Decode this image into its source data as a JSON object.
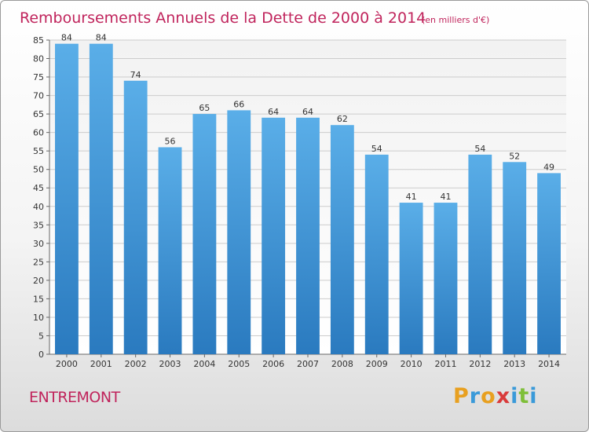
{
  "header": {
    "title": "Remboursements Annuels de la Dette de 2000 à 2014",
    "unit": "(en milliers d'€)"
  },
  "footer": {
    "commune": "ENTREMONT",
    "logo_text": "Proxiti",
    "logo_colors": [
      "#e8a020",
      "#3a9ad9",
      "#e8a020",
      "#d93a3a",
      "#3a9ad9",
      "#7fbf3a",
      "#3a9ad9"
    ]
  },
  "chart_data": {
    "type": "bar",
    "categories": [
      "2000",
      "2001",
      "2002",
      "2003",
      "2004",
      "2005",
      "2006",
      "2007",
      "2008",
      "2009",
      "2010",
      "2011",
      "2012",
      "2013",
      "2014"
    ],
    "values": [
      84,
      84,
      74,
      56,
      65,
      66,
      64,
      64,
      62,
      54,
      41,
      41,
      54,
      52,
      49
    ],
    "ylim": [
      0,
      85
    ],
    "yticks": [
      0,
      5,
      10,
      15,
      20,
      25,
      30,
      35,
      40,
      45,
      50,
      55,
      60,
      65,
      70,
      75,
      80,
      85
    ],
    "grid": true,
    "bar_color_top": "#5aaee8",
    "bar_color_bottom": "#2a7abf"
  }
}
